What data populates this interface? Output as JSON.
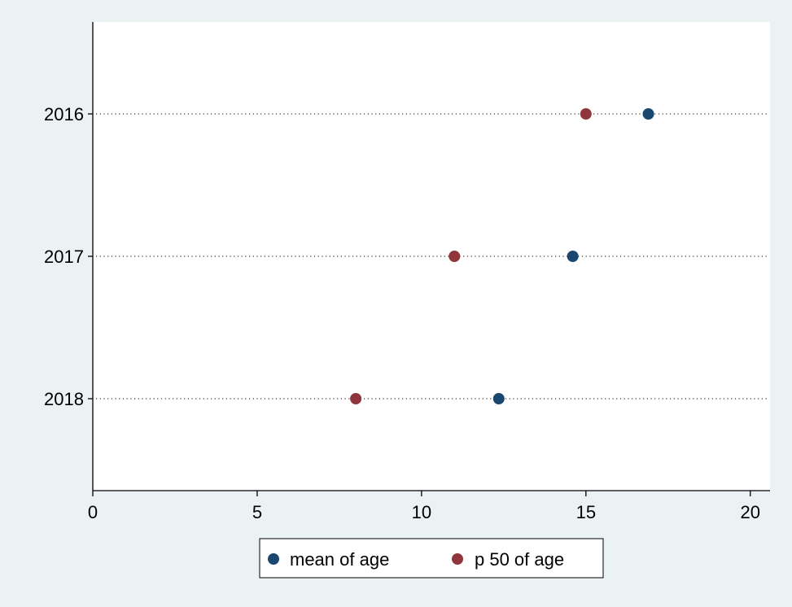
{
  "chart_data": {
    "type": "scatter",
    "orientation": "horizontal-dot",
    "categories": [
      "2016",
      "2017",
      "2018"
    ],
    "xlim": [
      0,
      20.6
    ],
    "xticks": [
      0,
      5,
      10,
      15,
      20
    ],
    "tick_labels": [
      "0",
      "5",
      "10",
      "15",
      "20"
    ],
    "series": [
      {
        "name": "mean of age",
        "values": [
          16.9,
          14.6,
          12.35
        ],
        "color": "#1a476f"
      },
      {
        "name": "p 50 of age",
        "values": [
          15,
          11,
          8
        ],
        "color": "#90353b"
      }
    ],
    "legend": {
      "position": "bottom",
      "items": [
        "mean of age",
        "p 50 of age"
      ]
    },
    "grid": "dotted horizontal lines at categories",
    "background_color": "#eaf2f3",
    "plot_color": "#ffffff"
  }
}
